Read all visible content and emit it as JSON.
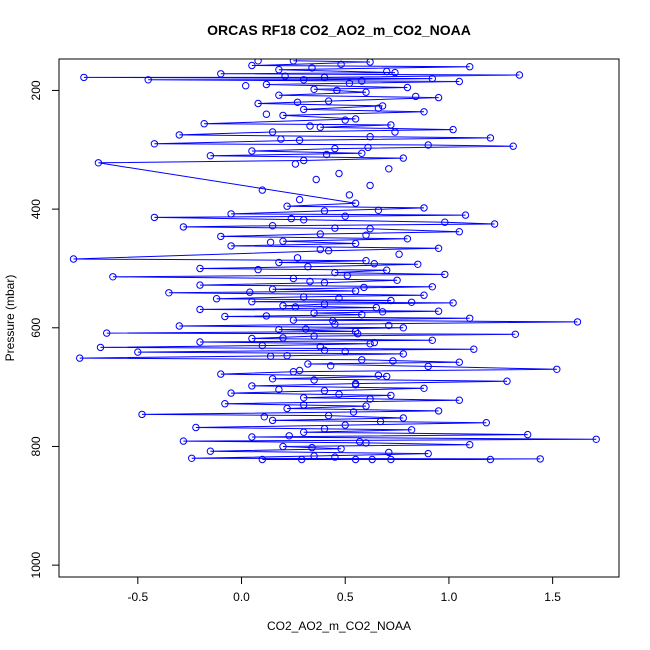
{
  "chart_data": {
    "type": "scatter",
    "title": "ORCAS RF18 CO2_AO2_m_CO2_NOAA",
    "xlabel": "CO2_AO2_m_CO2_NOAA",
    "ylabel": "Pressure (mbar)",
    "xlim": [
      -0.88,
      1.82
    ],
    "ylim": [
      1020,
      147
    ],
    "y_reversed": true,
    "x_ticks": [
      -0.5,
      0.0,
      0.5,
      1.0,
      1.5
    ],
    "x_tick_labels": [
      "-0.5",
      "0.0",
      "0.5",
      "1.0",
      "1.5"
    ],
    "y_ticks": [
      200,
      400,
      600,
      800,
      1000
    ],
    "y_tick_labels": [
      "200",
      "400",
      "600",
      "800",
      "1000"
    ],
    "grid": false,
    "legend": "none",
    "marker": "open-circle",
    "series_color": "#0000ff",
    "series": [
      {
        "line": true,
        "points": [
          [
            0.25,
            150
          ],
          [
            0.62,
            152
          ],
          [
            0.05,
            158
          ],
          [
            1.1,
            160
          ],
          [
            0.18,
            165
          ],
          [
            0.74,
            170
          ],
          [
            -0.1,
            172
          ],
          [
            1.34,
            174
          ],
          [
            0.4,
            178
          ],
          [
            -0.76,
            178
          ],
          [
            0.92,
            180
          ],
          [
            0.3,
            182
          ],
          [
            -0.45,
            182
          ],
          [
            1.05,
            185
          ],
          [
            0.52,
            188
          ],
          [
            0.12,
            190
          ],
          [
            0.8,
            195
          ],
          [
            0.35,
            198
          ],
          [
            0.6,
            203
          ],
          [
            0.18,
            208
          ],
          [
            0.95,
            212
          ],
          [
            0.42,
            218
          ],
          [
            0.08,
            222
          ],
          [
            0.68,
            226
          ],
          [
            0.3,
            232
          ],
          [
            0.88,
            236
          ],
          [
            0.2,
            242
          ],
          [
            0.55,
            248
          ],
          [
            -0.18,
            256
          ],
          [
            0.72,
            258
          ],
          [
            0.38,
            262
          ],
          [
            1.02,
            266
          ],
          [
            0.15,
            270
          ],
          [
            -0.3,
            275
          ],
          [
            0.62,
            278
          ],
          [
            1.2,
            280
          ],
          [
            0.28,
            284
          ],
          [
            -0.42,
            290
          ],
          [
            0.9,
            292
          ],
          [
            1.31,
            294
          ],
          [
            0.45,
            298
          ],
          [
            0.05,
            302
          ],
          [
            0.58,
            306
          ],
          [
            -0.15,
            310
          ],
          [
            0.78,
            314
          ],
          [
            0.3,
            318
          ],
          [
            -0.69,
            322
          ],
          [
            0.55,
            390
          ],
          [
            0.22,
            395
          ],
          [
            0.88,
            398
          ],
          [
            0.4,
            403
          ],
          [
            -0.05,
            408
          ],
          [
            1.08,
            410
          ],
          [
            0.5,
            412
          ],
          [
            -0.42,
            414
          ],
          [
            0.3,
            418
          ],
          [
            0.98,
            422
          ],
          [
            1.22,
            425
          ],
          [
            0.15,
            428
          ],
          [
            -0.28,
            430
          ],
          [
            0.62,
            433
          ],
          [
            1.05,
            438
          ],
          [
            0.38,
            442
          ],
          [
            -0.1,
            446
          ],
          [
            0.8,
            450
          ],
          [
            0.2,
            454
          ],
          [
            0.55,
            458
          ],
          [
            -0.05,
            462
          ],
          [
            0.95,
            466
          ],
          [
            0.42,
            470
          ],
          [
            -0.81,
            484
          ],
          [
            0.6,
            487
          ],
          [
            0.18,
            490
          ],
          [
            0.85,
            493
          ],
          [
            0.32,
            497
          ],
          [
            -0.2,
            500
          ],
          [
            0.7,
            503
          ],
          [
            0.45,
            507
          ],
          [
            0.98,
            510
          ],
          [
            -0.62,
            514
          ],
          [
            0.25,
            517
          ],
          [
            0.75,
            520
          ],
          [
            0.4,
            524
          ],
          [
            -0.2,
            528
          ],
          [
            0.92,
            531
          ],
          [
            0.15,
            535
          ],
          [
            0.55,
            538
          ],
          [
            -0.35,
            541
          ],
          [
            0.88,
            545
          ],
          [
            0.3,
            548
          ],
          [
            -0.12,
            551
          ],
          [
            0.72,
            554
          ],
          [
            0.05,
            556
          ],
          [
            1.02,
            558
          ],
          [
            0.4,
            560
          ],
          [
            0.2,
            563
          ],
          [
            0.65,
            566
          ],
          [
            -0.2,
            569
          ],
          [
            0.95,
            572
          ],
          [
            0.35,
            575
          ],
          [
            0.58,
            578
          ],
          [
            -0.08,
            581
          ],
          [
            1.1,
            584
          ],
          [
            0.25,
            587
          ],
          [
            1.62,
            590
          ],
          [
            0.45,
            594
          ],
          [
            -0.3,
            597
          ],
          [
            0.78,
            600
          ],
          [
            0.18,
            603
          ],
          [
            0.55,
            606
          ],
          [
            -0.65,
            609
          ],
          [
            1.32,
            611
          ],
          [
            0.35,
            614
          ],
          [
            0.05,
            618
          ],
          [
            0.92,
            621
          ],
          [
            -0.2,
            624
          ],
          [
            0.62,
            627
          ],
          [
            0.1,
            630
          ],
          [
            -0.68,
            633
          ],
          [
            1.12,
            636
          ],
          [
            0.4,
            638
          ],
          [
            -0.5,
            641
          ],
          [
            0.78,
            644
          ],
          [
            0.22,
            647
          ],
          [
            -0.78,
            651
          ],
          [
            0.58,
            654
          ],
          [
            1.05,
            658
          ],
          [
            0.32,
            661
          ],
          [
            0.9,
            665
          ],
          [
            1.52,
            670
          ],
          [
            0.25,
            674
          ],
          [
            -0.1,
            678
          ],
          [
            0.7,
            682
          ],
          [
            0.15,
            686
          ],
          [
            1.28,
            690
          ],
          [
            0.55,
            694
          ],
          [
            0.05,
            698
          ],
          [
            0.88,
            702
          ],
          [
            0.4,
            706
          ],
          [
            -0.05,
            710
          ],
          [
            0.72,
            714
          ],
          [
            0.3,
            718
          ],
          [
            1.05,
            722
          ],
          [
            -0.08,
            728
          ],
          [
            0.6,
            732
          ],
          [
            0.22,
            736
          ],
          [
            0.95,
            740
          ],
          [
            -0.48,
            746
          ],
          [
            0.42,
            748
          ],
          [
            0.78,
            752
          ],
          [
            0.15,
            756
          ],
          [
            1.18,
            760
          ],
          [
            0.5,
            764
          ],
          [
            -0.22,
            768
          ],
          [
            0.82,
            772
          ],
          [
            0.3,
            776
          ],
          [
            1.38,
            780
          ],
          [
            0.05,
            784
          ],
          [
            1.71,
            788
          ],
          [
            -0.28,
            791
          ],
          [
            0.6,
            794
          ],
          [
            1.1,
            797
          ],
          [
            0.2,
            800
          ],
          [
            0.48,
            804
          ],
          [
            -0.15,
            808
          ],
          [
            0.9,
            812
          ],
          [
            0.35,
            816
          ],
          [
            -0.24,
            820
          ],
          [
            1.44,
            821
          ],
          [
            0.55,
            822
          ],
          [
            0.1,
            822
          ],
          [
            1.2,
            822
          ],
          [
            0.72,
            822
          ]
        ]
      },
      {
        "line": false,
        "points": [
          [
            0.08,
            150
          ],
          [
            0.48,
            156
          ],
          [
            0.34,
            162
          ],
          [
            0.7,
            168
          ],
          [
            0.21,
            176
          ],
          [
            0.58,
            184
          ],
          [
            0.02,
            192
          ],
          [
            0.46,
            200
          ],
          [
            0.84,
            210
          ],
          [
            0.27,
            220
          ],
          [
            0.66,
            230
          ],
          [
            0.12,
            240
          ],
          [
            0.5,
            250
          ],
          [
            0.33,
            260
          ],
          [
            0.74,
            270
          ],
          [
            0.19,
            282
          ],
          [
            0.61,
            296
          ],
          [
            0.41,
            308
          ],
          [
            0.26,
            324
          ],
          [
            0.71,
            332
          ],
          [
            0.47,
            340
          ],
          [
            0.36,
            350
          ],
          [
            0.62,
            360
          ],
          [
            0.1,
            368
          ],
          [
            0.52,
            376
          ],
          [
            0.28,
            384
          ],
          [
            0.66,
            402
          ],
          [
            0.24,
            416
          ],
          [
            0.45,
            432
          ],
          [
            0.6,
            444
          ],
          [
            0.14,
            456
          ],
          [
            0.38,
            468
          ],
          [
            0.76,
            476
          ],
          [
            0.27,
            482
          ],
          [
            0.64,
            492
          ],
          [
            0.08,
            502
          ],
          [
            0.51,
            512
          ],
          [
            0.33,
            522
          ],
          [
            0.59,
            532
          ],
          [
            0.04,
            540
          ],
          [
            0.47,
            550
          ],
          [
            0.82,
            557
          ],
          [
            0.26,
            565
          ],
          [
            0.68,
            573
          ],
          [
            0.12,
            580
          ],
          [
            0.44,
            588
          ],
          [
            0.71,
            596
          ],
          [
            0.31,
            602
          ],
          [
            0.56,
            610
          ],
          [
            0.2,
            617
          ],
          [
            0.64,
            625
          ],
          [
            0.38,
            632
          ],
          [
            0.5,
            640
          ],
          [
            0.14,
            648
          ],
          [
            0.73,
            656
          ],
          [
            0.43,
            664
          ],
          [
            0.28,
            672
          ],
          [
            0.66,
            680
          ],
          [
            0.35,
            688
          ],
          [
            0.55,
            696
          ],
          [
            0.18,
            704
          ],
          [
            0.47,
            712
          ],
          [
            0.62,
            720
          ],
          [
            0.3,
            730
          ],
          [
            0.54,
            742
          ],
          [
            0.11,
            750
          ],
          [
            0.67,
            758
          ],
          [
            0.4,
            770
          ],
          [
            0.23,
            782
          ],
          [
            0.57,
            792
          ],
          [
            0.34,
            802
          ],
          [
            0.71,
            810
          ],
          [
            0.45,
            818
          ],
          [
            0.29,
            822
          ],
          [
            0.63,
            822
          ]
        ]
      }
    ]
  }
}
